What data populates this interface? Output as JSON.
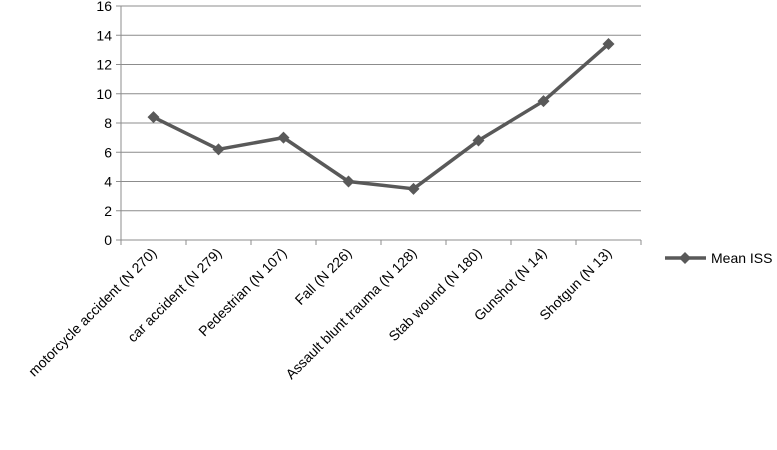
{
  "chart_data": {
    "type": "line",
    "title": "",
    "xlabel": "",
    "ylabel": "",
    "categories": [
      "motorcycle accident (N 270)",
      "car accident (N 279)",
      "Pedestrian (N 107)",
      "Fall (N 226)",
      "Assault blunt trauma (N 128)",
      "Stab wound (N 180)",
      "Gunshot (N 14)",
      "Shotgun (N 13)"
    ],
    "series": [
      {
        "name": "Mean ISS",
        "values": [
          8.4,
          6.2,
          7.0,
          4.0,
          3.5,
          6.8,
          9.5,
          13.4
        ],
        "color": "#595959",
        "marker": "diamond"
      }
    ],
    "ylim": [
      0,
      16
    ],
    "yticks": [
      0,
      2,
      4,
      6,
      8,
      10,
      12,
      14,
      16
    ],
    "grid": true,
    "legend": "right"
  }
}
